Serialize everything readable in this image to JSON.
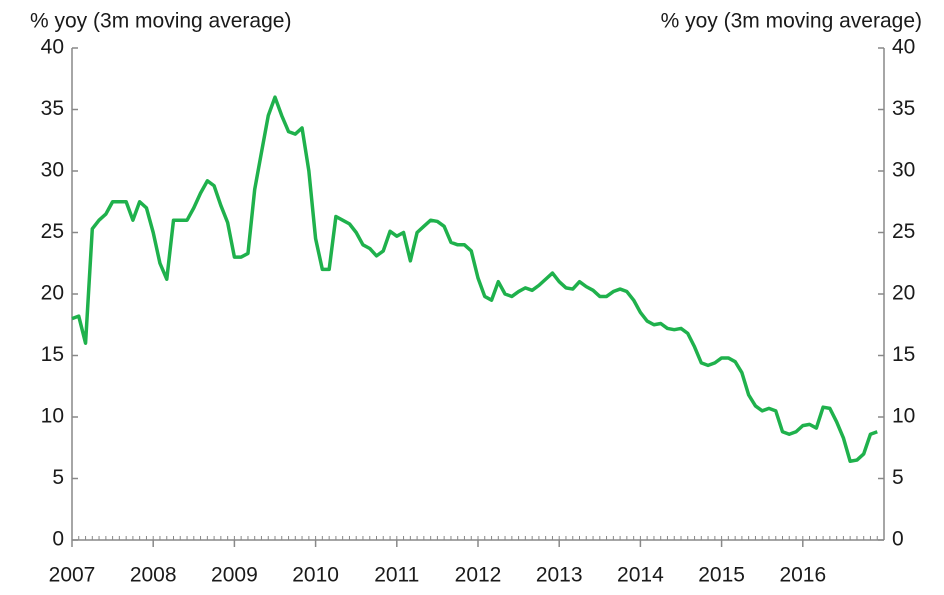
{
  "chart_data": {
    "type": "line",
    "y_label": "% yoy (3m moving average)",
    "y2_label": "% yoy (3m moving average)",
    "x": [
      2007.0,
      2007.083,
      2007.167,
      2007.25,
      2007.333,
      2007.417,
      2007.5,
      2007.583,
      2007.667,
      2007.75,
      2007.833,
      2007.917,
      2008.0,
      2008.083,
      2008.167,
      2008.25,
      2008.333,
      2008.417,
      2008.5,
      2008.583,
      2008.667,
      2008.75,
      2008.833,
      2008.917,
      2009.0,
      2009.083,
      2009.167,
      2009.25,
      2009.333,
      2009.417,
      2009.5,
      2009.583,
      2009.667,
      2009.75,
      2009.833,
      2009.917,
      2010.0,
      2010.083,
      2010.167,
      2010.25,
      2010.333,
      2010.417,
      2010.5,
      2010.583,
      2010.667,
      2010.75,
      2010.833,
      2010.917,
      2011.0,
      2011.083,
      2011.167,
      2011.25,
      2011.333,
      2011.417,
      2011.5,
      2011.583,
      2011.667,
      2011.75,
      2011.833,
      2011.917,
      2012.0,
      2012.083,
      2012.167,
      2012.25,
      2012.333,
      2012.417,
      2012.5,
      2012.583,
      2012.667,
      2012.75,
      2012.833,
      2012.917,
      2013.0,
      2013.083,
      2013.167,
      2013.25,
      2013.333,
      2013.417,
      2013.5,
      2013.583,
      2013.667,
      2013.75,
      2013.833,
      2013.917,
      2014.0,
      2014.083,
      2014.167,
      2014.25,
      2014.333,
      2014.417,
      2014.5,
      2014.583,
      2014.667,
      2014.75,
      2014.833,
      2014.917,
      2015.0,
      2015.083,
      2015.167,
      2015.25,
      2015.333,
      2015.417,
      2015.5,
      2015.583,
      2015.667,
      2015.75,
      2015.833,
      2015.917,
      2016.0,
      2016.083,
      2016.167,
      2016.25,
      2016.333,
      2016.417,
      2016.5,
      2016.583,
      2016.667,
      2016.75,
      2016.833,
      2016.917
    ],
    "series": [
      {
        "name": "% yoy",
        "color": "#1fb14c",
        "values": [
          18,
          18.2,
          16,
          25.3,
          26,
          26.5,
          27.5,
          27.5,
          27.5,
          26,
          27.5,
          27,
          25,
          22.5,
          21.2,
          26,
          26,
          26,
          27,
          28.2,
          29.2,
          28.8,
          27.2,
          25.8,
          23,
          23,
          23.3,
          28.5,
          31.5,
          34.5,
          36,
          34.5,
          33.2,
          33,
          33.5,
          30,
          24.5,
          22,
          22,
          26.3,
          26,
          25.7,
          25,
          24,
          23.7,
          23.1,
          23.5,
          25.1,
          24.7,
          25,
          22.7,
          25,
          25.5,
          26,
          25.9,
          25.5,
          24.2,
          24,
          24,
          23.5,
          21.3,
          19.8,
          19.5,
          21,
          20,
          19.8,
          20.2,
          20.5,
          20.3,
          20.7,
          21.2,
          21.7,
          21,
          20.5,
          20.4,
          21,
          20.6,
          20.3,
          19.8,
          19.8,
          20.2,
          20.4,
          20.2,
          19.5,
          18.5,
          17.8,
          17.5,
          17.6,
          17.2,
          17.1,
          17.2,
          16.8,
          15.7,
          14.4,
          14.2,
          14.4,
          14.8,
          14.8,
          14.5,
          13.6,
          11.8,
          10.9,
          10.5,
          10.7,
          10.5,
          8.8,
          8.6,
          8.8,
          9.3,
          9.4,
          9.1,
          10.8,
          10.7,
          9.6,
          8.3,
          6.4,
          6.5,
          7.0,
          8.6,
          8.8
        ]
      }
    ],
    "xlim": [
      2007,
      2017
    ],
    "xticks": [
      2007,
      2008,
      2009,
      2010,
      2011,
      2012,
      2013,
      2014,
      2015,
      2016
    ],
    "ylim": [
      0,
      40
    ],
    "yticks": [
      0,
      5,
      10,
      15,
      20,
      25,
      30,
      35,
      40
    ],
    "y2lim": [
      0,
      40
    ],
    "y2ticks": [
      0,
      5,
      10,
      15,
      20,
      25,
      30,
      35,
      40
    ],
    "grid": false
  }
}
